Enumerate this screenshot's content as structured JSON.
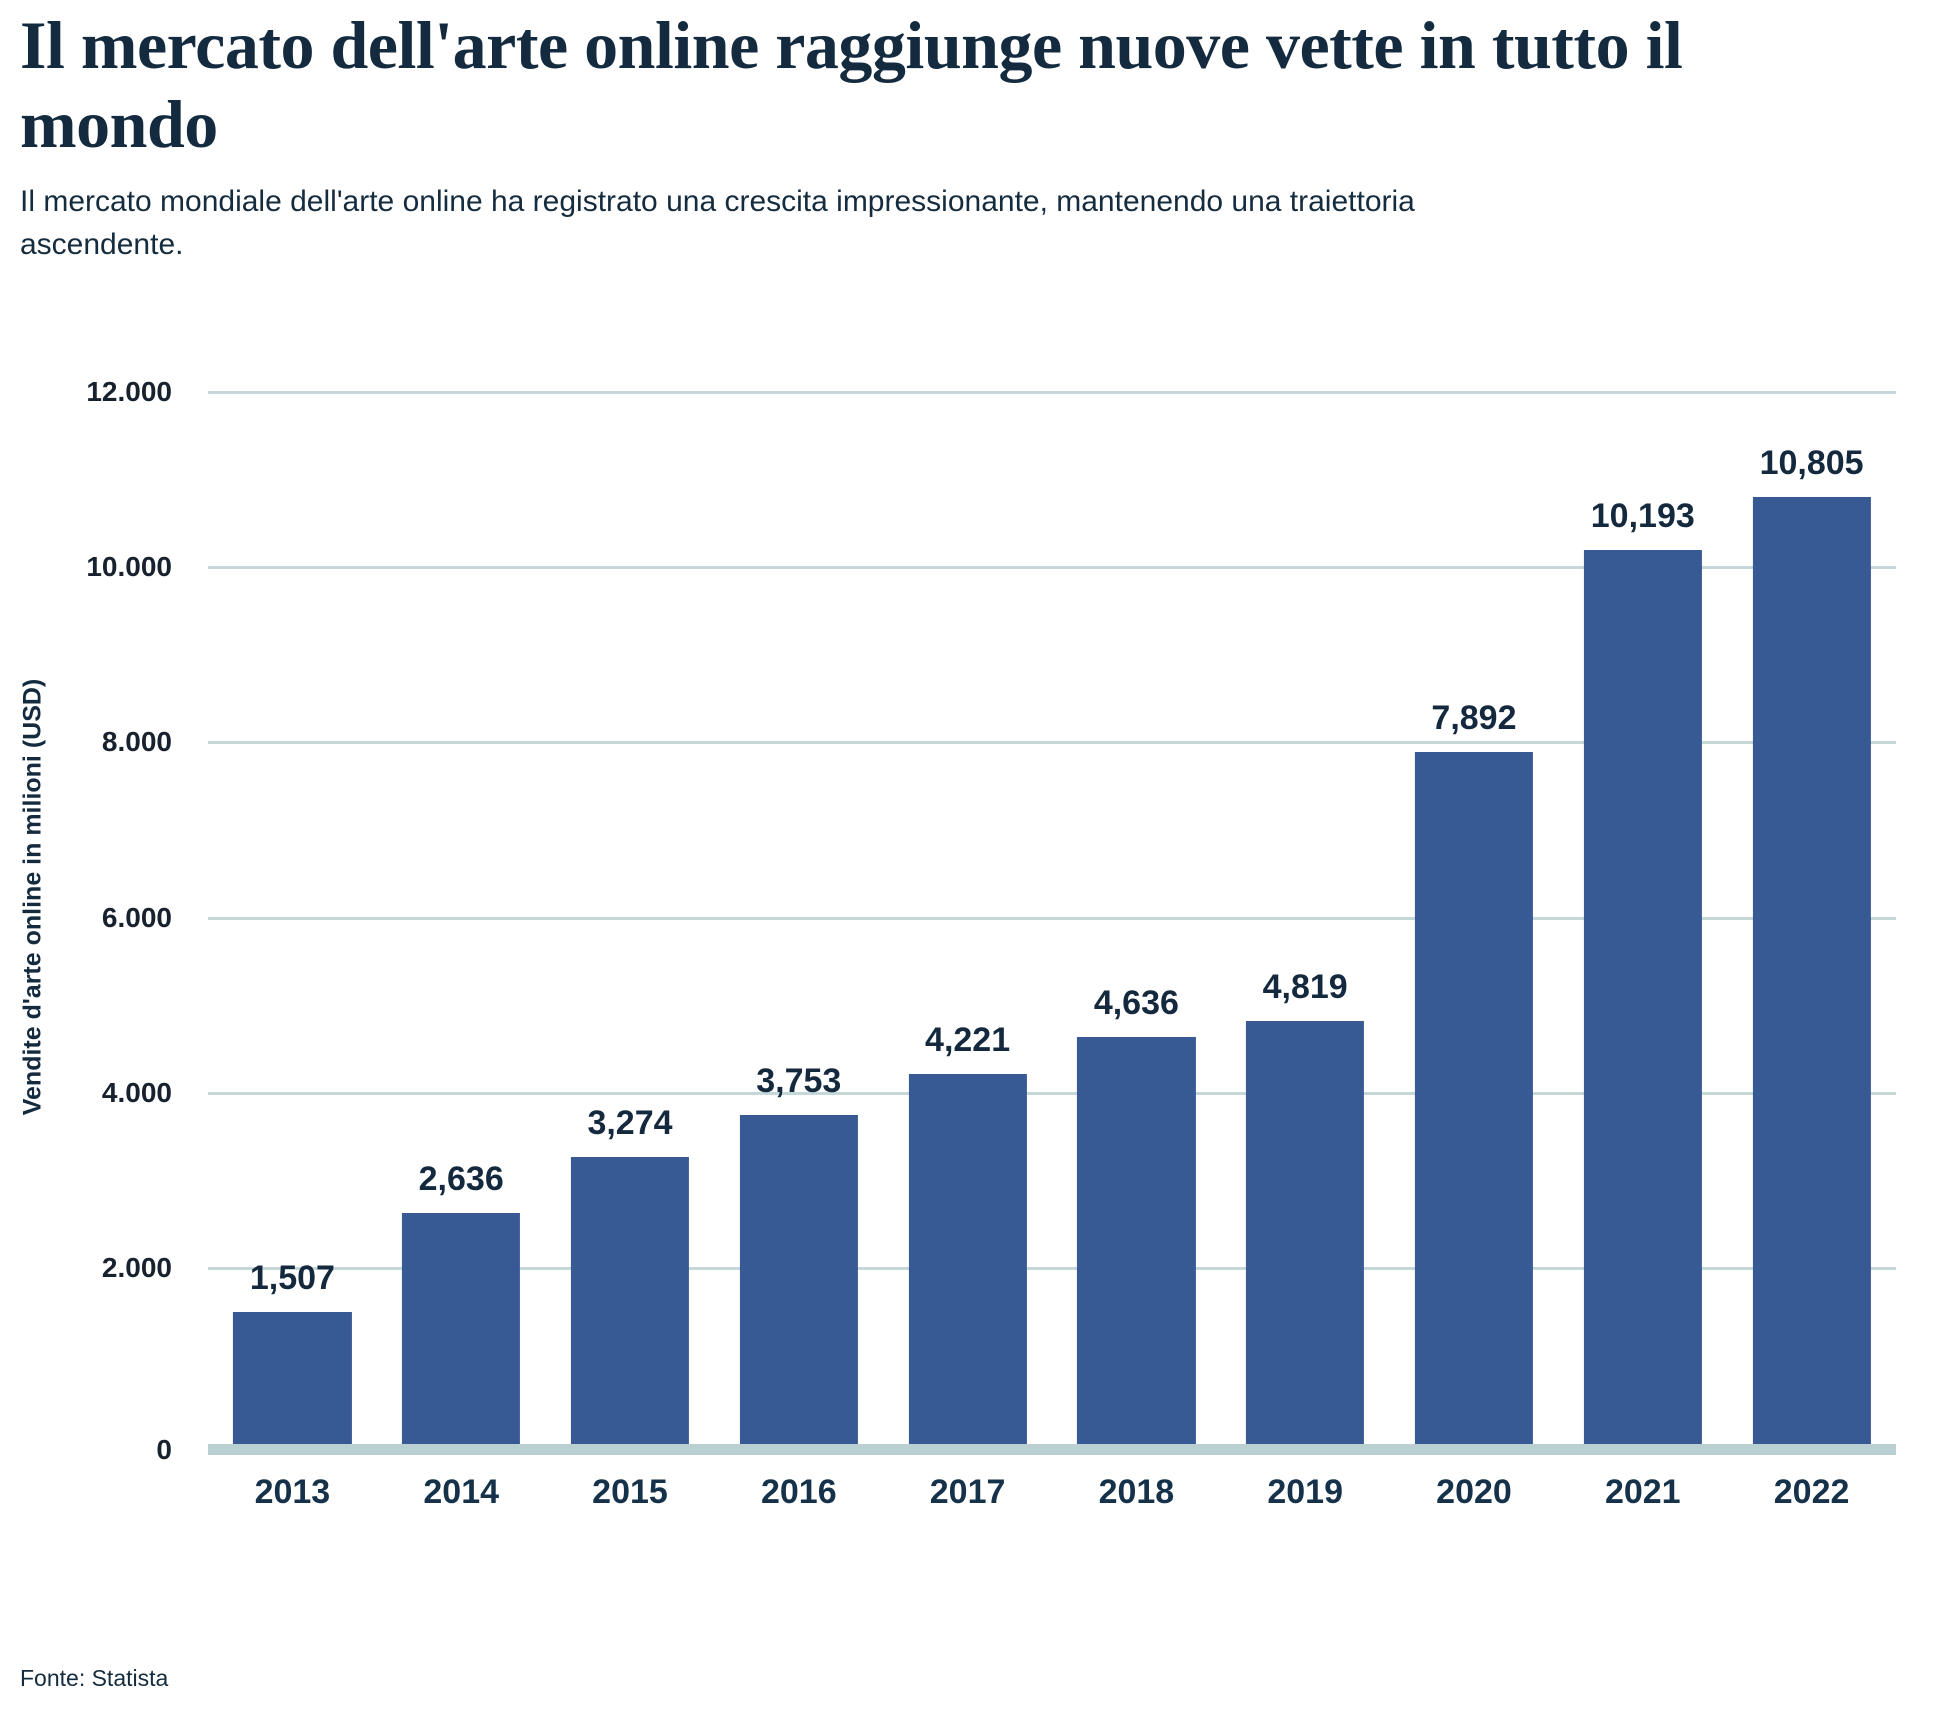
{
  "header": {
    "title": "Il mercato dell'arte online raggiunge nuove vette in tutto il mondo",
    "subtitle": "Il mercato mondiale dell'arte online ha registrato una crescita impressionante, mantenendo una traiettoria ascendente."
  },
  "chart_data": {
    "type": "bar",
    "title": "Il mercato dell'arte online raggiunge nuove vette in tutto il mondo",
    "categories": [
      "2013",
      "2014",
      "2015",
      "2016",
      "2017",
      "2018",
      "2019",
      "2020",
      "2021",
      "2022"
    ],
    "values": [
      1507,
      2636,
      3274,
      3753,
      4221,
      4636,
      4819,
      7892,
      10193,
      10805
    ],
    "value_labels": [
      "1,507",
      "2,636",
      "3,274",
      "3,753",
      "4,221",
      "4,636",
      "4,819",
      "7,892",
      "10,193",
      "10,805"
    ],
    "xlabel": "",
    "ylabel": "Vendite d'arte online in milioni (USD)",
    "ylim": [
      0,
      12000
    ],
    "ytick_interval": 2000,
    "yticks": [
      {
        "value": 0,
        "label": "0"
      },
      {
        "value": 2000,
        "label": "2.000"
      },
      {
        "value": 4000,
        "label": "4.000"
      },
      {
        "value": 6000,
        "label": "6.000"
      },
      {
        "value": 8000,
        "label": "8.000"
      },
      {
        "value": 10000,
        "label": "10.000"
      },
      {
        "value": 12000,
        "label": "12.000"
      }
    ],
    "grid": "horizontal",
    "legend": "none",
    "colors": {
      "bar": "#375A95",
      "gridline": "#C6D7DA",
      "baseline": "#B9CFD1",
      "title": "#142B3F",
      "value_label": "#14293D",
      "year_label": "#16324A",
      "tick_label": "#17222E"
    }
  },
  "source": {
    "label": "Fonte: Statista"
  }
}
